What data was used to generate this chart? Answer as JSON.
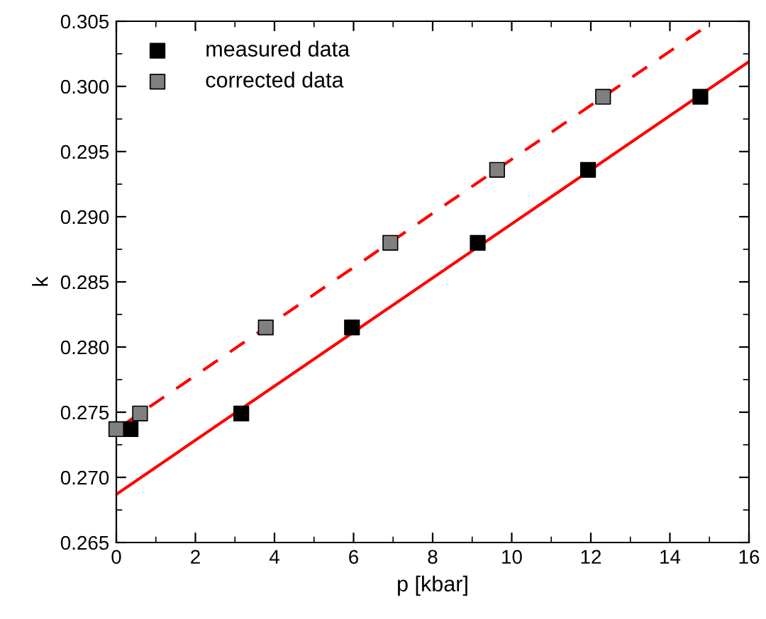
{
  "chart_data": {
    "type": "scatter",
    "xlabel": "p [kbar]",
    "ylabel": "k",
    "xlim": [
      0,
      16
    ],
    "ylim": [
      0.265,
      0.305
    ],
    "xticks": [
      0,
      2,
      4,
      6,
      8,
      10,
      12,
      14,
      16
    ],
    "yticks": [
      {
        "value": 0.265,
        "label": "0.265"
      },
      {
        "value": 0.27,
        "label": "0.270"
      },
      {
        "value": 0.275,
        "label": "0.275"
      },
      {
        "value": 0.28,
        "label": "0.280"
      },
      {
        "value": 0.285,
        "label": "0.285"
      },
      {
        "value": 0.29,
        "label": "0.290"
      },
      {
        "value": 0.295,
        "label": "0.295"
      },
      {
        "value": 0.3,
        "label": "0.300"
      },
      {
        "value": 0.305,
        "label": "0.305"
      }
    ],
    "grid": false,
    "legend": "top left",
    "marker": "square",
    "series": [
      {
        "type": "line",
        "color": "#ff0000",
        "line_style": "solid",
        "marker": "none",
        "x": [
          0,
          16
        ],
        "values": [
          0.2687,
          0.3019
        ]
      },
      {
        "type": "line",
        "color": "#ff0000",
        "line_style": "dashed",
        "marker": "none",
        "x": [
          0.16,
          14.87
        ],
        "values": [
          0.274,
          0.3045
        ]
      },
      {
        "name": "measured data",
        "color": "#000000",
        "x": [
          0.36,
          3.16,
          5.96,
          9.14,
          11.93,
          14.77
        ],
        "values": [
          0.2737,
          0.2749,
          0.2815,
          0.288,
          0.2936,
          0.2992
        ]
      },
      {
        "name": "corrected data",
        "color": "#808080",
        "x": [
          0,
          0.6,
          3.78,
          6.93,
          9.63,
          12.31
        ],
        "values": [
          0.2737,
          0.2749,
          0.2815,
          0.288,
          0.2936,
          0.2992
        ]
      }
    ]
  }
}
